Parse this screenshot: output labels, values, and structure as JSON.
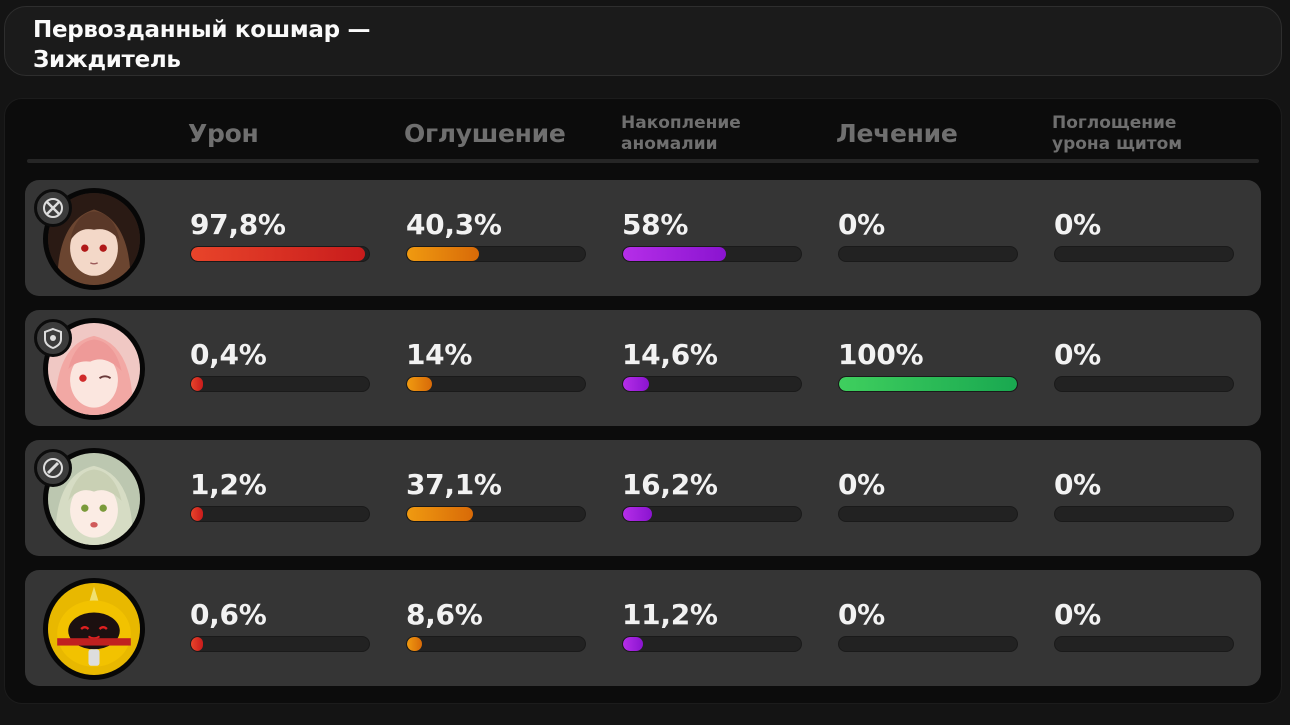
{
  "title": "Первозданный кошмар — Зиждитель",
  "columns": [
    {
      "key": "damage",
      "label": "Урон",
      "color": "#e03a2a"
    },
    {
      "key": "daze",
      "label": "Оглушение",
      "color": "#e8820b"
    },
    {
      "key": "anomaly",
      "label": "Накопление аномалии",
      "color": "#a020e0"
    },
    {
      "key": "healing",
      "label": "Лечение",
      "color": "#2fbf5a"
    },
    {
      "key": "shield",
      "label": "Поглощение урона щитом",
      "color": "#2a8fe0"
    }
  ],
  "rows": [
    {
      "role_icon": "attack-role-icon",
      "avatar_icon": "brown-haired-agent-portrait",
      "stats": [
        {
          "text": "97,8%",
          "percent": 97.8
        },
        {
          "text": "40,3%",
          "percent": 40.3
        },
        {
          "text": "58%",
          "percent": 58
        },
        {
          "text": "0%",
          "percent": 0
        },
        {
          "text": "0%",
          "percent": 0
        }
      ]
    },
    {
      "role_icon": "support-role-icon",
      "avatar_icon": "pink-haired-agent-portrait",
      "stats": [
        {
          "text": "0,4%",
          "percent": 0.4
        },
        {
          "text": "14%",
          "percent": 14
        },
        {
          "text": "14,6%",
          "percent": 14.6
        },
        {
          "text": "100%",
          "percent": 100
        },
        {
          "text": "0%",
          "percent": 0
        }
      ]
    },
    {
      "role_icon": "anomaly-role-icon",
      "avatar_icon": "green-haired-agent-portrait",
      "stats": [
        {
          "text": "1,2%",
          "percent": 1.2
        },
        {
          "text": "37,1%",
          "percent": 37.1
        },
        {
          "text": "16,2%",
          "percent": 16.2
        },
        {
          "text": "0%",
          "percent": 0
        },
        {
          "text": "0%",
          "percent": 0
        }
      ]
    },
    {
      "role_icon": "",
      "avatar_icon": "bangboo-yellow-portrait",
      "stats": [
        {
          "text": "0,6%",
          "percent": 0.6
        },
        {
          "text": "8,6%",
          "percent": 8.6
        },
        {
          "text": "11,2%",
          "percent": 11.2
        },
        {
          "text": "0%",
          "percent": 0
        },
        {
          "text": "0%",
          "percent": 0
        }
      ]
    }
  ]
}
